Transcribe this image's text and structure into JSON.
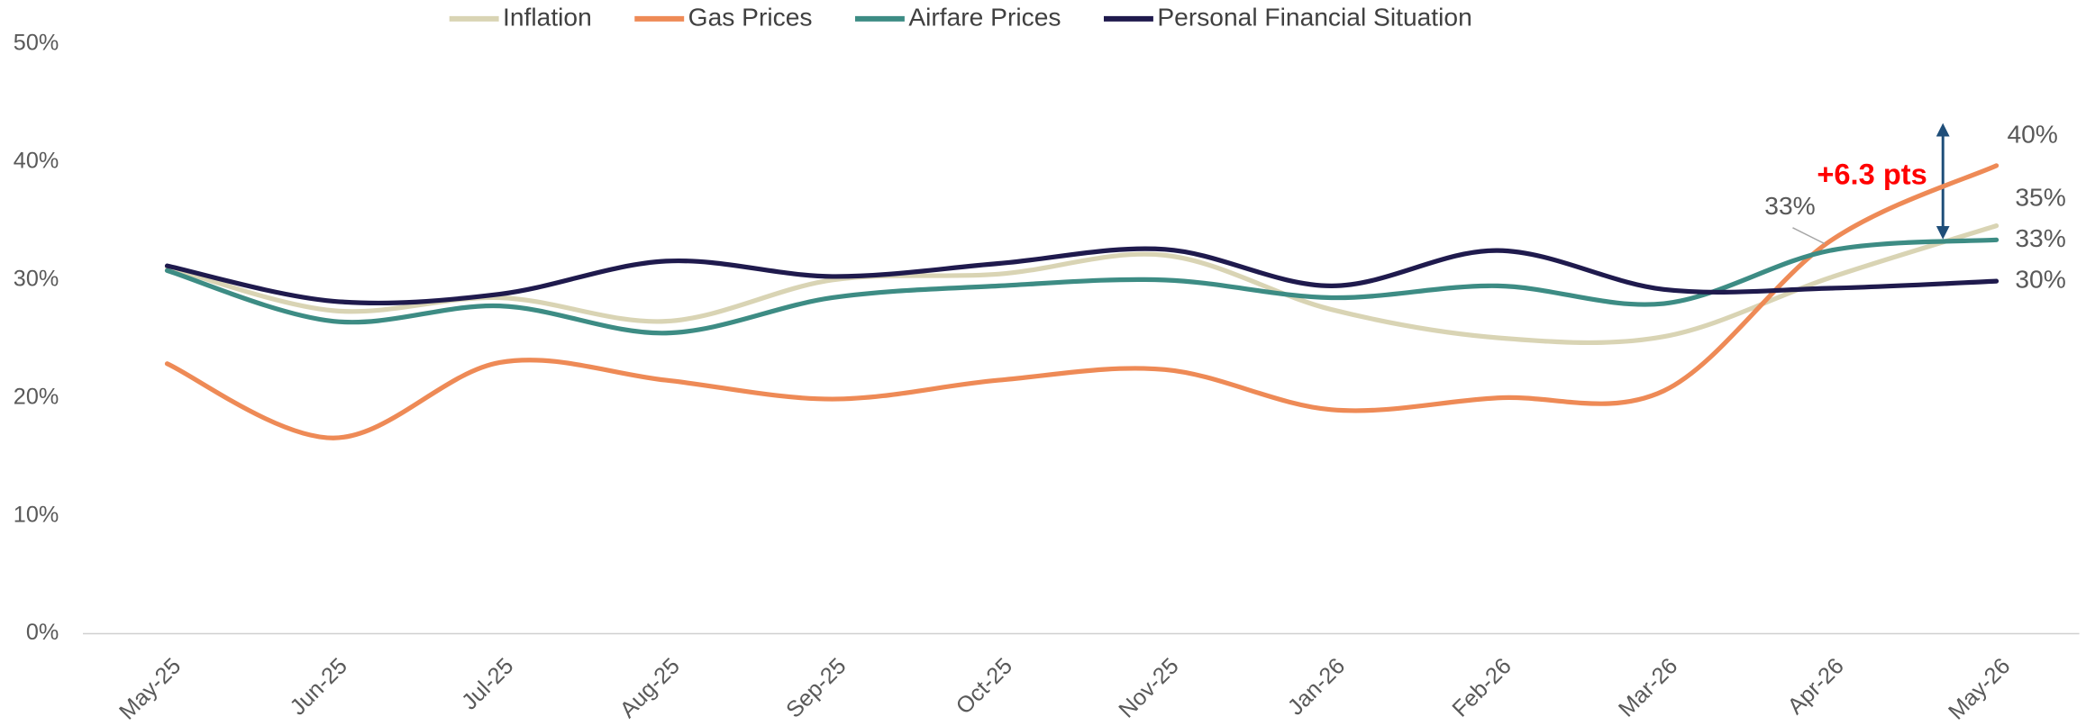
{
  "chart_data": {
    "type": "line",
    "categories": [
      "May-25",
      "Jun-25",
      "Jul-25",
      "Aug-25",
      "Sep-25",
      "Oct-25",
      "Nov-25",
      "Jan-26",
      "Feb-26",
      "Mar-26",
      "Apr-26",
      "May-26"
    ],
    "series": [
      {
        "name": "Inflation",
        "color": "#d9d4b4",
        "values": [
          31.1,
          27.4,
          28.5,
          26.5,
          30,
          30.5,
          32.1,
          27.5,
          25.1,
          25.2,
          30.2,
          34.6
        ],
        "value_labels": [
          null,
          null,
          null,
          null,
          null,
          null,
          null,
          null,
          null,
          null,
          null,
          "35%"
        ]
      },
      {
        "name": "Gas Prices",
        "color": "#ee8a56",
        "values": [
          22.9,
          16.6,
          23,
          21.5,
          19.9,
          21.5,
          22.4,
          19,
          20,
          20.6,
          33.3,
          39.7
        ],
        "value_labels": [
          null,
          null,
          null,
          null,
          null,
          null,
          null,
          null,
          null,
          null,
          "33%",
          "40%"
        ]
      },
      {
        "name": "Airfare Prices",
        "color": "#3d8c84",
        "values": [
          30.8,
          26.5,
          27.8,
          25.5,
          28.5,
          29.5,
          30,
          28.5,
          29.5,
          28,
          32.5,
          33.4
        ],
        "value_labels": [
          null,
          null,
          null,
          null,
          null,
          null,
          null,
          null,
          null,
          null,
          null,
          "33%"
        ]
      },
      {
        "name": "Personal Financial Situation",
        "color": "#1f1a4d",
        "values": [
          31.2,
          28.2,
          28.8,
          31.6,
          30.3,
          31.4,
          32.6,
          29.5,
          32.5,
          29.2,
          29.3,
          29.9
        ],
        "value_labels": [
          null,
          null,
          null,
          null,
          null,
          null,
          null,
          null,
          null,
          null,
          null,
          "30%"
        ]
      }
    ],
    "annotation": "+6.3 pts",
    "ylim": [
      0,
      50
    ],
    "yticks": [
      {
        "value": 0,
        "label": "0%"
      },
      {
        "value": 10,
        "label": "10%"
      },
      {
        "value": 20,
        "label": "20%"
      },
      {
        "value": 30,
        "label": "30%"
      },
      {
        "value": 40,
        "label": "40%"
      },
      {
        "value": 50,
        "label": "50%"
      }
    ],
    "legend": "top"
  }
}
